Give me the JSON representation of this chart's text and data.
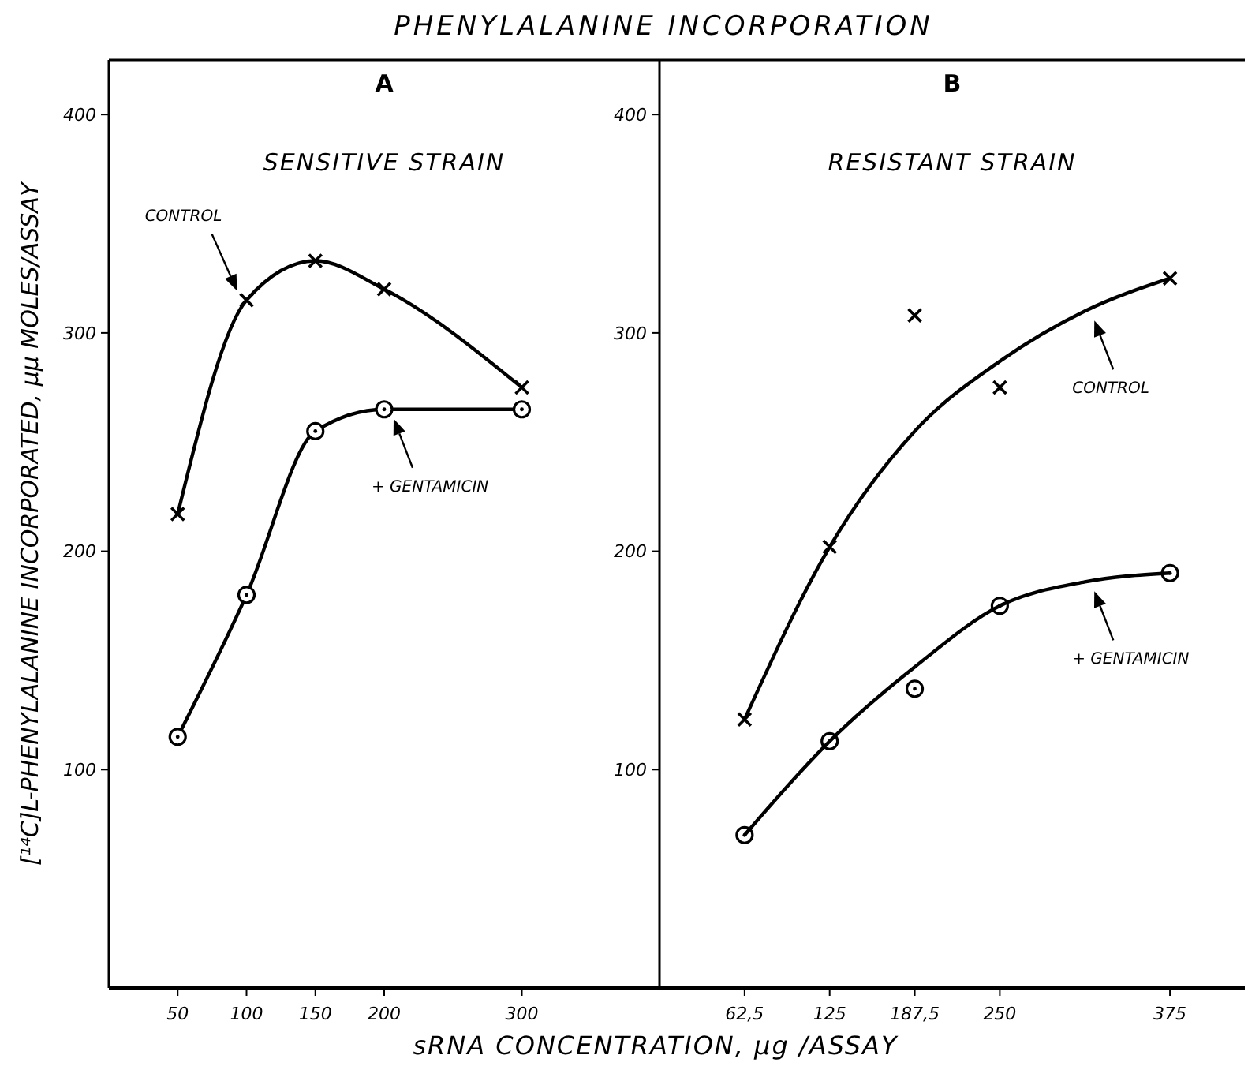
{
  "chart_data": [
    {
      "type": "line",
      "title": "PHENYLALANINE INCORPORATION",
      "subtitle": "SENSITIVE STRAIN",
      "xlabel": "sRNA CONCENTRATION, μg /ASSAY",
      "ylabel": "[¹⁴C]L-PHENYLALANINE INCORPORATED, μμ MOLES/ASSAY",
      "x": [
        50,
        100,
        150,
        200,
        300
      ],
      "xlim": [
        0,
        400
      ],
      "xticks": [
        50,
        100,
        150,
        200,
        300
      ],
      "ylim": [
        0,
        425
      ],
      "yticks": [
        100,
        200,
        300,
        400
      ],
      "grid": false,
      "series": [
        {
          "name": "CONTROL",
          "marker": "cross",
          "color": "#000000",
          "values": [
            217,
            315,
            333,
            320,
            275
          ]
        },
        {
          "name": "+ GENTAMICIN",
          "marker": "circle",
          "color": "#000000",
          "values": [
            115,
            180,
            255,
            265,
            265
          ]
        }
      ],
      "annotations": [
        "A"
      ]
    },
    {
      "type": "line",
      "subtitle": "RESISTANT STRAIN",
      "legend": "right",
      "x": [
        62.5,
        125,
        187.5,
        250,
        375
      ],
      "xlim": [
        0,
        430
      ],
      "xticks": [
        {
          "value": 62.5,
          "label": "62,5"
        },
        125,
        {
          "value": 187.5,
          "label": "187,5"
        },
        250,
        375
      ],
      "ylim": [
        0,
        425
      ],
      "yticks": [
        100,
        200,
        300,
        400
      ],
      "grid": false,
      "series": [
        {
          "type": "scatter",
          "marker": "cross",
          "color": "#000000",
          "values": [
            123,
            202,
            308,
            275,
            325
          ]
        },
        {
          "name": "CONTROL",
          "marker": "none",
          "color": "#000000",
          "x": [
            62.5,
            125,
            187.5,
            250,
            312.5,
            375
          ],
          "values": [
            123,
            202,
            255,
            287,
            310,
            325
          ]
        },
        {
          "type": "scatter",
          "marker": "circle",
          "color": "#000000",
          "values": [
            70,
            113,
            137,
            175,
            190
          ]
        },
        {
          "name": "+ GENTAMICIN",
          "marker": "none",
          "color": "#000000",
          "x": [
            62.5,
            125,
            187.5,
            250,
            312.5,
            375
          ],
          "values": [
            70,
            113,
            147,
            175,
            186,
            190
          ]
        }
      ],
      "annotations": [
        "B"
      ]
    }
  ]
}
